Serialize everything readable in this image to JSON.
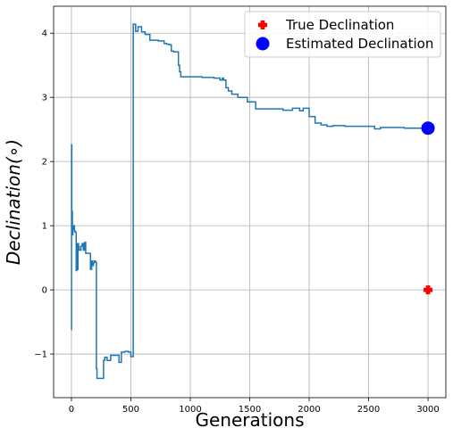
{
  "chart_data": {
    "type": "line",
    "title": "",
    "xlabel": "Generations",
    "ylabel": "Declination(∘)",
    "xlim": [
      -150,
      3150
    ],
    "ylim": [
      -1.68,
      4.42
    ],
    "grid": true,
    "legend_position": "top-right",
    "x_ticks": [
      0,
      500,
      1000,
      1500,
      2000,
      2500,
      3000
    ],
    "y_ticks": [
      -1,
      0,
      1,
      2,
      3,
      4
    ],
    "series": [
      {
        "name": "",
        "color": "#1f77b4",
        "style": "step",
        "x": [
          0,
          1,
          3,
          5,
          8,
          12,
          16,
          20,
          25,
          30,
          40,
          45,
          50,
          55,
          60,
          65,
          80,
          90,
          100,
          110,
          120,
          160,
          170,
          175,
          185,
          190,
          200,
          210,
          215,
          220,
          270,
          280,
          300,
          330,
          360,
          400,
          420,
          450,
          480,
          500,
          520,
          540,
          560,
          590,
          620,
          660,
          700,
          730,
          780,
          800,
          820,
          840,
          860,
          900,
          910,
          920,
          1000,
          1100,
          1200,
          1250,
          1270,
          1280,
          1300,
          1320,
          1350,
          1400,
          1480,
          1550,
          1600,
          1700,
          1780,
          1800,
          1860,
          1920,
          1950,
          2000,
          2050,
          2100,
          2150,
          2200,
          2300,
          2500,
          2550,
          2600,
          2650,
          2800,
          3000
        ],
        "y": [
          -0.62,
          2.26,
          0.9,
          1.22,
          0.86,
          0.98,
          0.95,
          1.0,
          0.92,
          0.9,
          0.3,
          0.72,
          0.32,
          0.72,
          0.67,
          0.62,
          0.68,
          0.72,
          0.62,
          0.74,
          0.57,
          0.32,
          0.45,
          0.38,
          0.42,
          0.45,
          0.43,
          -1.23,
          -1.38,
          -1.38,
          -1.1,
          -1.05,
          -1.1,
          -1.02,
          -1.02,
          -1.13,
          -0.97,
          -0.96,
          -0.97,
          -1.04,
          4.14,
          4.03,
          4.1,
          4.02,
          3.98,
          3.89,
          3.89,
          3.88,
          3.84,
          3.83,
          3.82,
          3.72,
          3.71,
          3.5,
          3.4,
          3.32,
          3.32,
          3.31,
          3.3,
          3.27,
          3.3,
          3.27,
          3.15,
          3.1,
          3.05,
          3.0,
          2.93,
          2.82,
          2.82,
          2.82,
          2.8,
          2.8,
          2.83,
          2.79,
          2.83,
          2.7,
          2.6,
          2.57,
          2.55,
          2.56,
          2.55,
          2.55,
          2.51,
          2.53,
          2.53,
          2.52,
          2.52
        ]
      },
      {
        "name": "True Declination",
        "color": "#ff0000",
        "marker": "P",
        "x": [
          3000
        ],
        "y": [
          0.0
        ]
      },
      {
        "name": "Estimated Declination",
        "color": "#0000ff",
        "marker": "o",
        "x": [
          3000
        ],
        "y": [
          2.52
        ]
      }
    ]
  }
}
